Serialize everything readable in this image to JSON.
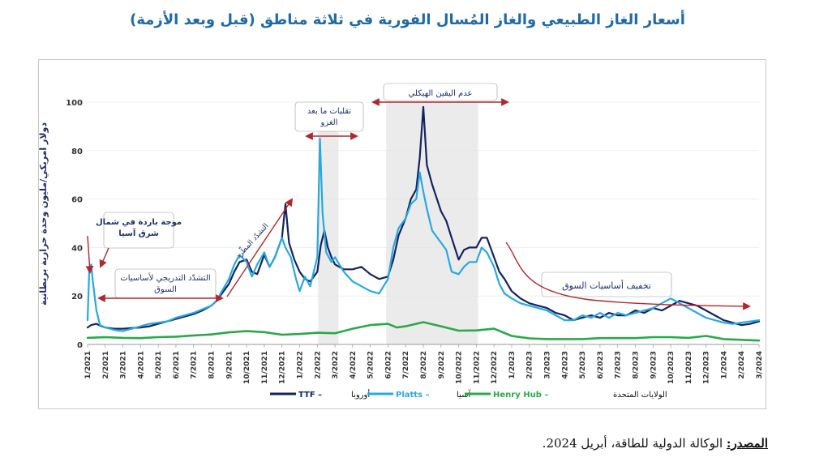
{
  "title": "أسعار الغاز الطبيعي والغاز المُسال الفورية في ثلاثة مناطق (قبل وبعد الأزمة)",
  "source_label": "المصدر:",
  "source_text": "الوكالة الدولية للطاقة، أبريل 2024.",
  "colors": {
    "ttf": "#15235e",
    "platts": "#29a8e0",
    "henry": "#2aa84a",
    "title": "#1f6aa5",
    "annotation": "#b0272d",
    "shade": "#ebebeb"
  },
  "chart_data": {
    "type": "line",
    "ylabel": "دولار أمريكي/مليون وحدة حرارية بريطانية",
    "ylim": [
      0,
      100
    ],
    "yticks": [
      0,
      20,
      40,
      60,
      80,
      100
    ],
    "xticks": [
      "1/2021",
      "2/2021",
      "3/2021",
      "4/2021",
      "5/2021",
      "6/2021",
      "7/2021",
      "8/2021",
      "9/2021",
      "10/2021",
      "11/2021",
      "12/2021",
      "1/2022",
      "2/2022",
      "3/2022",
      "4/2022",
      "5/2022",
      "6/2022",
      "7/2022",
      "8/2022",
      "9/2022",
      "10/2022",
      "11/2022",
      "12/2022",
      "1/2023",
      "2/2023",
      "3/2023",
      "4/2023",
      "5/2023",
      "6/2023",
      "7/2023",
      "8/2023",
      "9/2023",
      "10/2023",
      "11/2023",
      "12/2023",
      "1/2024",
      "2/2024",
      "3/2024"
    ],
    "legend": [
      {
        "label": "TTF",
        "region": "أوروبا",
        "key": "ttf"
      },
      {
        "label": "Platts",
        "region": "آسيا",
        "key": "platts"
      },
      {
        "label": "Henry Hub",
        "region": "الولايات المتحدة",
        "key": "henry"
      }
    ],
    "series": [
      {
        "key": "ttf",
        "name": "TTF",
        "x": [
          1,
          1.2,
          1.5,
          1.8,
          2,
          2.5,
          3,
          3.5,
          4,
          4.5,
          5,
          5.5,
          6,
          6.5,
          7,
          7.5,
          8,
          8.3,
          8.6,
          9,
          9.3,
          9.6,
          10,
          10.3,
          10.6,
          11,
          11.3,
          11.6,
          12,
          12.2,
          12.4,
          12.7,
          13,
          13.3,
          13.6,
          14,
          14.2,
          14.4,
          14.6,
          14.8,
          15,
          15.5,
          16,
          16.5,
          17,
          17.5,
          18,
          18.3,
          18.6,
          19,
          19.3,
          19.6,
          19.8,
          20,
          20.2,
          20.5,
          21,
          21.3,
          21.6,
          22,
          22.3,
          22.6,
          23,
          23.3,
          23.6,
          24,
          24.3,
          24.6,
          25,
          25.5,
          26,
          26.5,
          27,
          27.5,
          28,
          28.5,
          29,
          29.5,
          30,
          30.5,
          31,
          31.5,
          32,
          32.5,
          33,
          33.5,
          34,
          34.5,
          35,
          35.5,
          36,
          36.5,
          37,
          37.5,
          38,
          38.5,
          39
        ],
        "values": [
          7,
          8,
          8.5,
          7.5,
          7,
          6.5,
          6.5,
          6.8,
          7,
          7.5,
          8.5,
          9.5,
          10.5,
          11.5,
          12.5,
          14,
          16,
          18,
          21,
          25,
          30,
          34,
          35,
          30,
          29,
          37,
          32,
          36,
          44,
          58,
          42,
          35,
          30,
          27,
          26,
          30,
          41,
          47,
          40,
          36,
          33,
          31,
          31,
          32,
          29,
          27,
          28,
          35,
          45,
          52,
          60,
          64,
          77,
          98,
          74,
          66,
          55,
          51,
          44,
          35,
          39,
          40,
          40,
          44,
          44,
          36,
          30,
          27,
          22,
          19,
          17,
          16,
          15,
          13,
          12,
          10,
          11,
          12,
          11,
          13,
          12,
          12,
          14,
          13,
          15,
          14,
          16,
          18,
          17,
          16,
          14,
          12,
          10,
          9,
          8,
          8.5,
          9.5
        ]
      },
      {
        "key": "platts",
        "name": "Platts",
        "x": [
          1,
          1.1,
          1.2,
          1.3,
          1.5,
          1.7,
          2,
          2.5,
          3,
          3.5,
          4,
          4.5,
          5,
          5.5,
          6,
          6.5,
          7,
          7.5,
          8,
          8.3,
          8.6,
          9,
          9.3,
          9.6,
          10,
          10.3,
          10.6,
          11,
          11.3,
          11.6,
          12,
          12.2,
          12.5,
          12.8,
          13,
          13.3,
          13.6,
          14,
          14.15,
          14.3,
          14.5,
          14.8,
          15,
          15.5,
          16,
          16.5,
          17,
          17.5,
          18,
          18.3,
          18.6,
          19,
          19.3,
          19.6,
          19.8,
          20,
          20.2,
          20.5,
          21,
          21.3,
          21.6,
          22,
          22.3,
          22.6,
          23,
          23.3,
          23.6,
          24,
          24.3,
          24.6,
          25,
          25.5,
          26,
          26.5,
          27,
          27.5,
          28,
          28.5,
          29,
          29.5,
          30,
          30.5,
          31,
          31.5,
          32,
          32.5,
          33,
          33.5,
          34,
          34.5,
          35,
          35.5,
          36,
          36.5,
          37,
          37.5,
          38,
          38.5,
          39
        ],
        "values": [
          10,
          32,
          33,
          26,
          14,
          8,
          7,
          6,
          5.5,
          6.5,
          7.5,
          8.5,
          9,
          9.5,
          11,
          12,
          13,
          14.5,
          16,
          18,
          22,
          27,
          33,
          37,
          34,
          28,
          33,
          38,
          32,
          36,
          44,
          40,
          36,
          27,
          22,
          28,
          24,
          36,
          85,
          54,
          38,
          34,
          36,
          30,
          26,
          24,
          22,
          21,
          27,
          40,
          48,
          52,
          58,
          60,
          71,
          63,
          56,
          47,
          42,
          39,
          30,
          29,
          32,
          34,
          34,
          40,
          38,
          32,
          25,
          21,
          19,
          17,
          16,
          15,
          14,
          12,
          10,
          10,
          12,
          11,
          13,
          11,
          13,
          12,
          13,
          14,
          15,
          17,
          19,
          17,
          15,
          13,
          11,
          10,
          9,
          8.5,
          9,
          9.5,
          10
        ]
      },
      {
        "key": "henry",
        "name": "Henry Hub",
        "x": [
          1,
          2,
          3,
          4,
          5,
          6,
          7,
          8,
          9,
          10,
          11,
          12,
          13,
          14,
          15,
          16,
          17,
          18,
          18.5,
          19,
          20,
          21,
          22,
          23,
          24,
          25,
          26,
          27,
          28,
          29,
          30,
          31,
          32,
          33,
          34,
          35,
          36,
          37,
          38,
          39
        ],
        "values": [
          2.7,
          3,
          2.7,
          2.6,
          3,
          3.2,
          3.7,
          4.1,
          5,
          5.5,
          5.1,
          4,
          4.3,
          4.8,
          4.6,
          6.5,
          8,
          8.5,
          7,
          7.5,
          9.2,
          7.5,
          5.7,
          5.8,
          6.5,
          3.5,
          2.5,
          2.2,
          2.2,
          2.2,
          2.6,
          2.6,
          2.6,
          3,
          3,
          2.7,
          3.5,
          2.2,
          1.9,
          1.6
        ]
      }
    ],
    "shaded_periods": [
      {
        "from": 14.05,
        "to": 15.2
      },
      {
        "from": 17.9,
        "to": 23.1
      }
    ],
    "annotations": [
      {
        "text": "موجة باردة في شمال شرق آسيا"
      },
      {
        "text": "التشدّد التدريجي لأساسيات السوق"
      },
      {
        "text": "التشدّد المطّرد"
      },
      {
        "text": "تقلبات ما بعد الغزو"
      },
      {
        "text": "عدم اليقين الهيكلي"
      },
      {
        "text": "تخفيف أساسيات السوق"
      }
    ]
  }
}
